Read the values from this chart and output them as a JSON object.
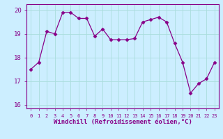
{
  "x": [
    0,
    1,
    2,
    3,
    4,
    5,
    6,
    7,
    8,
    9,
    10,
    11,
    12,
    13,
    14,
    15,
    16,
    17,
    18,
    19,
    20,
    21,
    22,
    23
  ],
  "y": [
    17.5,
    17.8,
    19.1,
    19.0,
    19.9,
    19.9,
    19.65,
    19.65,
    18.9,
    19.2,
    18.75,
    18.75,
    18.75,
    18.8,
    19.5,
    19.6,
    19.7,
    19.5,
    18.6,
    17.8,
    16.5,
    16.9,
    17.1,
    17.8
  ],
  "line_color": "#880088",
  "marker": "D",
  "marker_size": 2.5,
  "bg_color": "#cceeff",
  "grid_color": "#aadddd",
  "xlabel": "Windchill (Refroidissement éolien,°C)",
  "xlabel_color": "#880088",
  "tick_color": "#880088",
  "ylim": [
    15.85,
    20.25
  ],
  "yticks": [
    16,
    17,
    18,
    19,
    20
  ],
  "xlim": [
    -0.5,
    23.5
  ],
  "xtick_labels": [
    "0",
    "1",
    "2",
    "3",
    "4",
    "5",
    "6",
    "7",
    "8",
    "9",
    "10",
    "11",
    "12",
    "13",
    "14",
    "15",
    "16",
    "17",
    "18",
    "19",
    "20",
    "21",
    "22",
    "23"
  ]
}
